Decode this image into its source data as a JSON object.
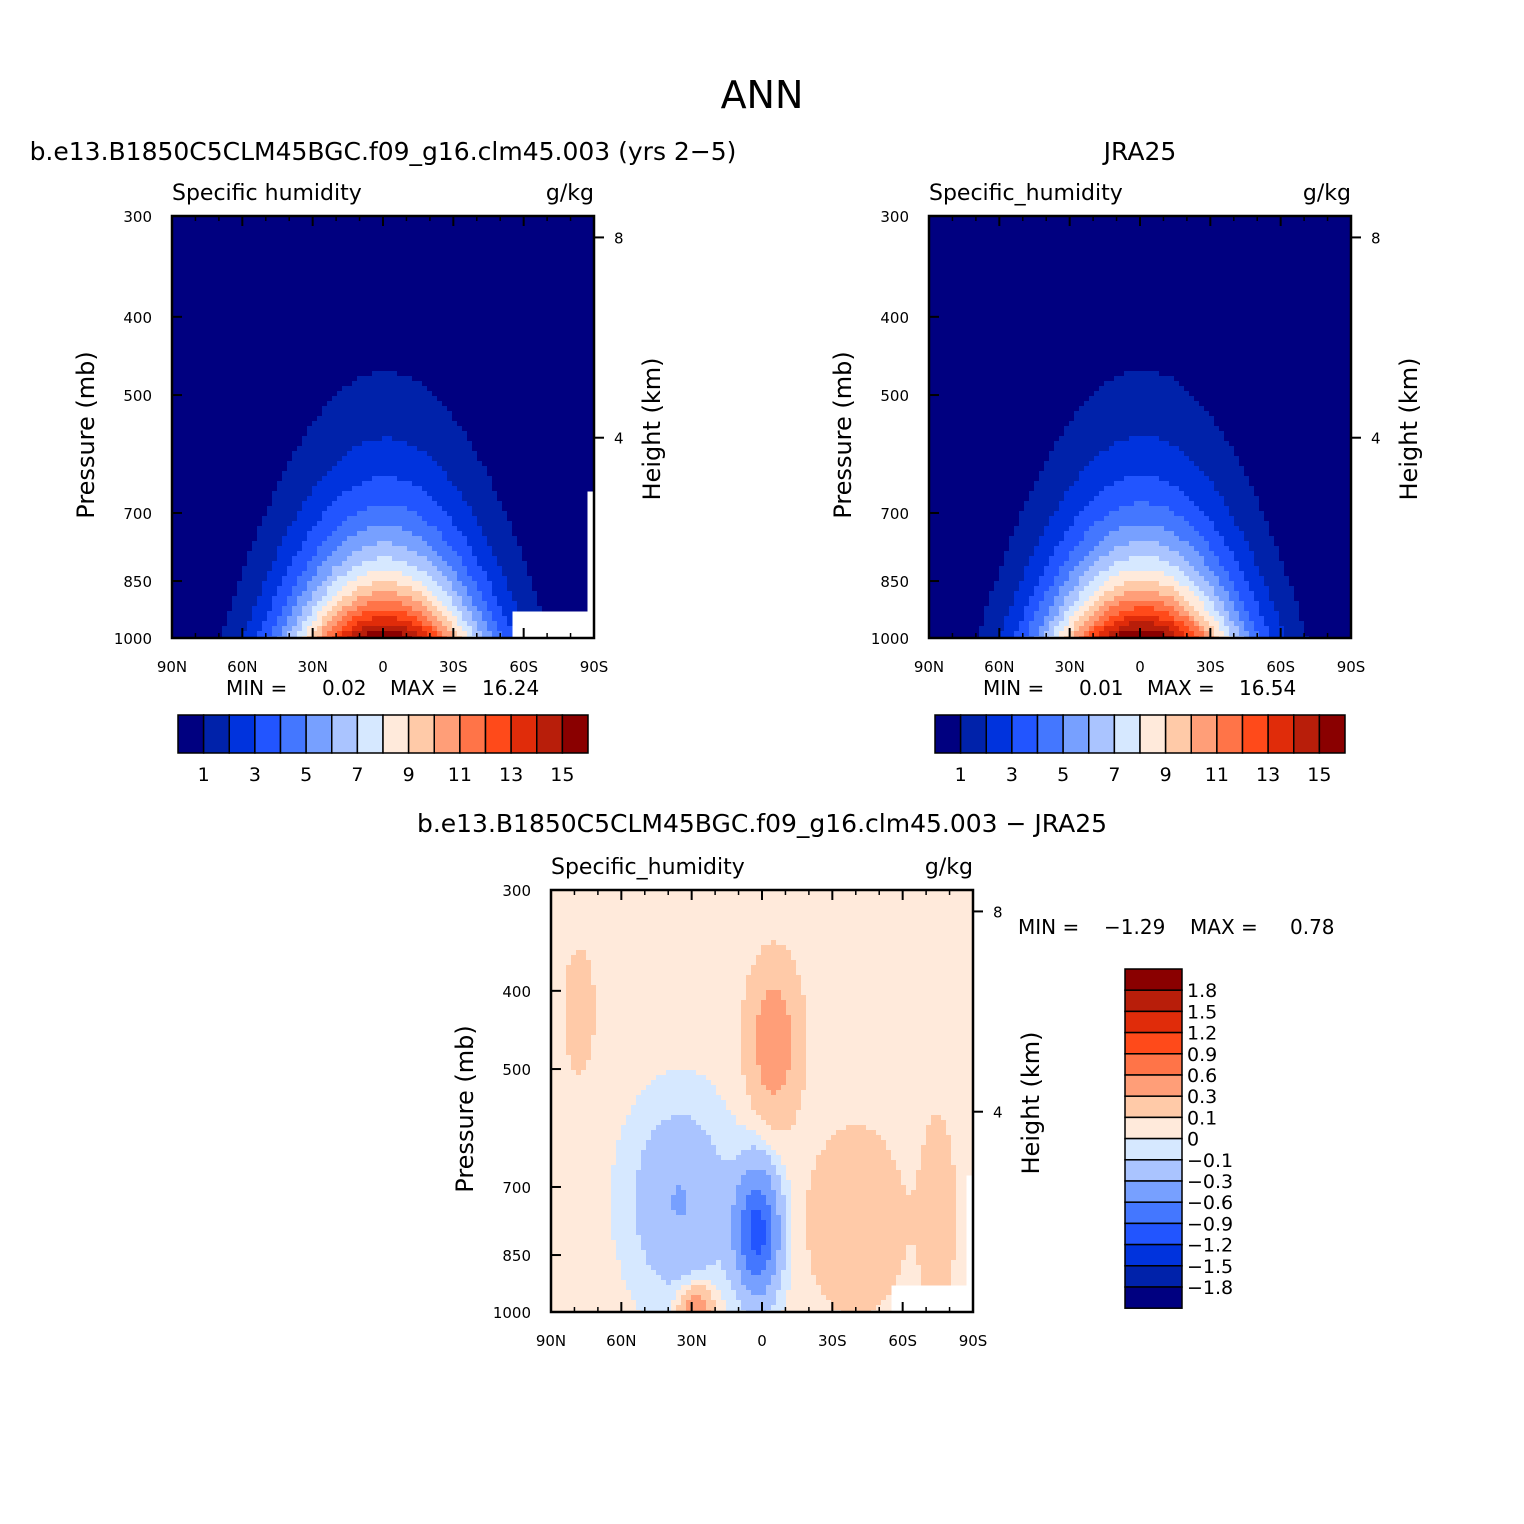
{
  "figure_title": "ANN",
  "colors": {
    "abs_levels": [
      "#000080",
      "#0022aa",
      "#0033dd",
      "#2255ff",
      "#4477ff",
      "#77a0ff",
      "#aac4ff",
      "#d6e8ff",
      "#ffeadb",
      "#ffcaa8",
      "#ff9e78",
      "#ff7448",
      "#ff4a1a",
      "#e02c0a",
      "#b81e0a",
      "#8a0000"
    ],
    "diff_levels": [
      "#000080",
      "#0022aa",
      "#0033dd",
      "#2255ff",
      "#4477ff",
      "#77a0ff",
      "#aac4ff",
      "#d6e8ff",
      "#ffeadb",
      "#ffcaa8",
      "#ff9e78",
      "#ff7448",
      "#ff4a1a",
      "#e02c0a",
      "#b81e0a",
      "#8a0000"
    ]
  },
  "chart_data": [
    {
      "type": "heatmap",
      "case_title": "b.e13.B1850C5CLM45BGC.f09_g16.clm45.003 (yrs 2-5)",
      "variable": "Specific humidity",
      "units": "g/kg",
      "ylabel": "Pressure (mb)",
      "y2label": "Height (km)",
      "x_ticks": [
        "90N",
        "60N",
        "30N",
        "0",
        "30S",
        "60S",
        "90S"
      ],
      "x_values": [
        90,
        60,
        30,
        0,
        -30,
        -60,
        -90
      ],
      "y_ticks": [
        300,
        400,
        500,
        700,
        850,
        1000
      ],
      "y2_ticks": [
        8,
        4
      ],
      "min_label": "MIN =",
      "min": "0.02",
      "max_label": "MAX =",
      "max": "16.24",
      "colorbar_labels": [
        "1",
        "3",
        "5",
        "7",
        "9",
        "11",
        "13",
        "15"
      ],
      "peak_lat": -1,
      "peak_value": 16.24
    },
    {
      "type": "heatmap",
      "case_title": "JRA25",
      "variable": "Specific_humidity",
      "units": "g/kg",
      "ylabel": "Pressure (mb)",
      "y2label": "Height (km)",
      "x_ticks": [
        "90N",
        "60N",
        "30N",
        "0",
        "30S",
        "60S",
        "90S"
      ],
      "x_values": [
        90,
        60,
        30,
        0,
        -30,
        -60,
        -90
      ],
      "y_ticks": [
        300,
        400,
        500,
        700,
        850,
        1000
      ],
      "y2_ticks": [
        8,
        4
      ],
      "min_label": "MIN =",
      "min": "0.01",
      "max_label": "MAX =",
      "max": "16.54",
      "colorbar_labels": [
        "1",
        "3",
        "5",
        "7",
        "9",
        "11",
        "13",
        "15"
      ],
      "peak_lat": -1,
      "peak_value": 16.54
    },
    {
      "type": "heatmap",
      "case_title": "b.e13.B1850C5CLM45BGC.f09_g16.clm45.003 - JRA25",
      "variable": "Specific_humidity",
      "units": "g/kg",
      "ylabel": "Pressure (mb)",
      "y2label": "Height (km)",
      "x_ticks": [
        "90N",
        "60N",
        "30N",
        "0",
        "30S",
        "60S",
        "90S"
      ],
      "x_values": [
        90,
        60,
        30,
        0,
        -30,
        -60,
        -90
      ],
      "y_ticks": [
        300,
        400,
        500,
        700,
        850,
        1000
      ],
      "y2_ticks": [
        8,
        4
      ],
      "min_label": "MIN =",
      "min": "-1.29",
      "max_label": "MAX =",
      "max": "0.78",
      "colorbar_labels": [
        "1.8",
        "1.5",
        "1.2",
        "0.9",
        "0.6",
        "0.3",
        "0.1",
        "0",
        "-0.1",
        "-0.3",
        "-0.6",
        "-0.9",
        "-1.2",
        "-1.5",
        "-1.8"
      ]
    }
  ]
}
